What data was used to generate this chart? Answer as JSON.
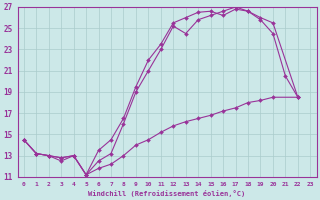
{
  "xlabel": "Windchill (Refroidissement éolien,°C)",
  "ylabel": "",
  "bg_color": "#cce8e8",
  "grid_color": "#aacccc",
  "line_color": "#993399",
  "marker_color": "#993399",
  "xlim": [
    -0.5,
    23.5
  ],
  "ylim": [
    11,
    27
  ],
  "xticks": [
    0,
    1,
    2,
    3,
    4,
    5,
    6,
    7,
    8,
    9,
    10,
    11,
    12,
    13,
    14,
    15,
    16,
    17,
    18,
    19,
    20,
    21,
    22,
    23
  ],
  "yticks": [
    11,
    13,
    15,
    17,
    19,
    21,
    23,
    25,
    27
  ],
  "line1_x": [
    0,
    1,
    2,
    3,
    4,
    5,
    6,
    7,
    8,
    9,
    10,
    11,
    12,
    13,
    14,
    15,
    16,
    17,
    18,
    19,
    20,
    21,
    22
  ],
  "line1_y": [
    14.5,
    13.2,
    13.0,
    12.5,
    13.0,
    11.2,
    12.5,
    13.2,
    16.0,
    19.0,
    21.0,
    23.0,
    25.2,
    24.5,
    25.8,
    26.2,
    26.6,
    27.0,
    26.6,
    25.8,
    24.5,
    20.5,
    18.5
  ],
  "line2_x": [
    0,
    1,
    2,
    3,
    4,
    5,
    6,
    7,
    8,
    9,
    10,
    11,
    12,
    13,
    14,
    15,
    16,
    17,
    18,
    19,
    20,
    22
  ],
  "line2_y": [
    14.5,
    13.2,
    13.0,
    12.8,
    13.0,
    11.2,
    13.5,
    14.5,
    16.5,
    19.5,
    22.0,
    23.5,
    25.5,
    26.0,
    26.5,
    26.6,
    26.2,
    26.8,
    26.6,
    26.0,
    25.5,
    18.5
  ],
  "line3_x": [
    0,
    1,
    2,
    3,
    4,
    5,
    6,
    7,
    8,
    9,
    10,
    11,
    12,
    13,
    14,
    15,
    16,
    17,
    18,
    19,
    20,
    22
  ],
  "line3_y": [
    14.5,
    13.2,
    13.0,
    12.8,
    13.0,
    11.2,
    11.8,
    12.2,
    13.0,
    14.0,
    14.5,
    15.2,
    15.8,
    16.2,
    16.5,
    16.8,
    17.2,
    17.5,
    18.0,
    18.2,
    18.5,
    18.5
  ]
}
